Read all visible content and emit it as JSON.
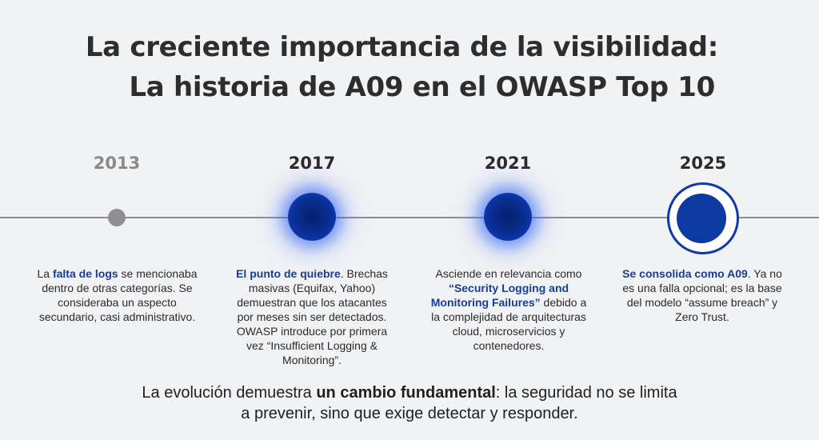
{
  "title": {
    "line1": "La creciente importancia de la visibilidad:",
    "line2": "La historia de A09 en el OWASP Top 10"
  },
  "timeline": [
    {
      "year": "2013",
      "desc_pre": "La ",
      "desc_hl": "falta de logs",
      "desc_post": " se mencionaba dentro de otras categorías. Se consideraba un aspecto secundario, casi administrativo."
    },
    {
      "year": "2017",
      "desc_pre": "",
      "desc_hl": "El punto de quiebre",
      "desc_post": ". Brechas masivas (Equifax, Yahoo) demuestran que los atacantes por meses sin ser detectados. OWASP introduce por primera vez “Insufficient Logging & Monitoring”."
    },
    {
      "year": "2021",
      "desc_pre": "Asciende en relevancia como ",
      "desc_hl": "“Security Logging and Monitoring Failures”",
      "desc_post": " debido a la complejidad de arquitecturas cloud, microservicios y contenedores."
    },
    {
      "year": "2025",
      "desc_pre": "",
      "desc_hl": "Se consolida como A09",
      "desc_post": ". Ya no es una falla opcional; es la base del modelo “assume breach” y Zero Trust."
    }
  ],
  "footer": {
    "pre": "La evolución demuestra ",
    "bold": "un cambio fundamental",
    "post_line1": ": la seguridad no se limita",
    "line2": "a prevenir, sino que exige detectar y responder."
  }
}
